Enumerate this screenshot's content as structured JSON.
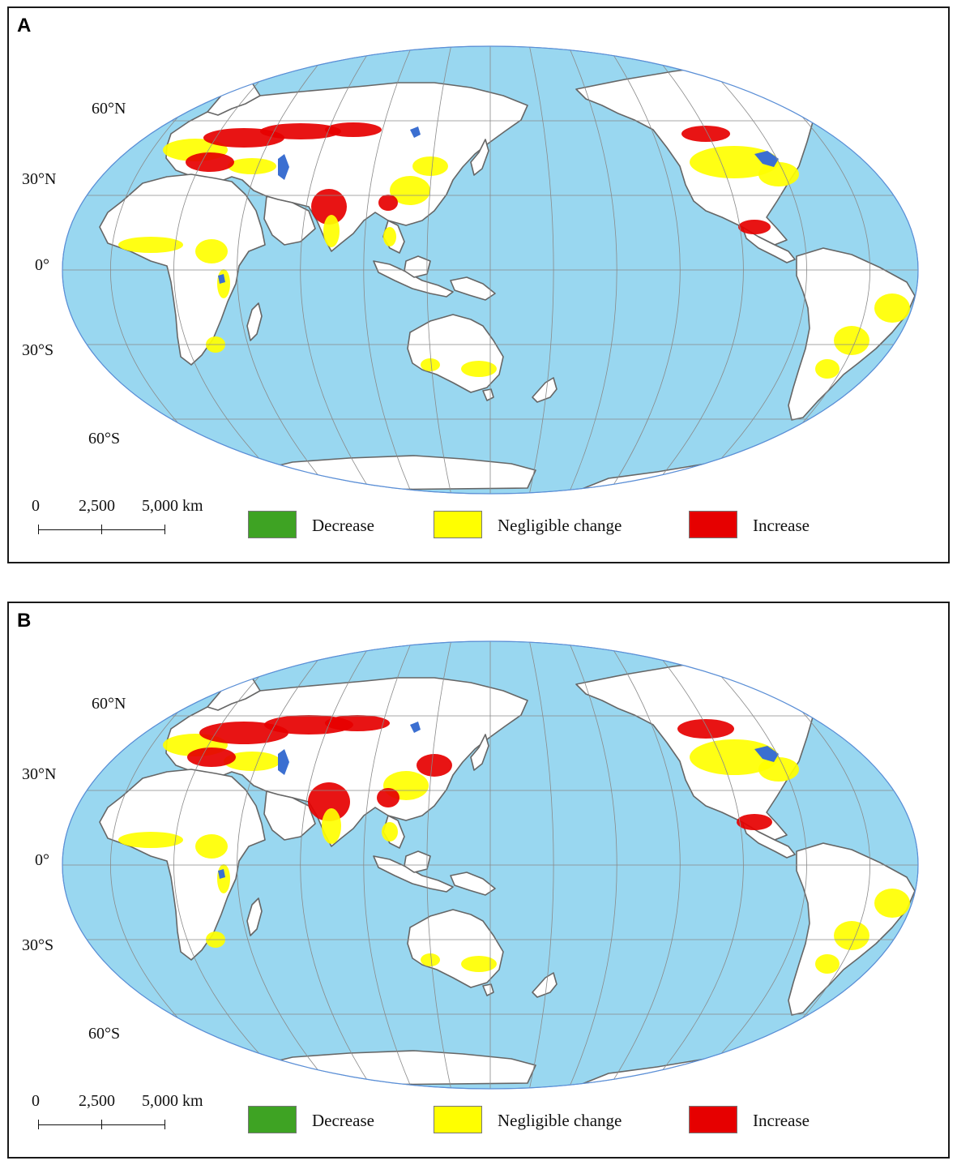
{
  "panels": [
    {
      "letter": "A",
      "latitude_labels": [
        "60°N",
        "30°N",
        "0°",
        "30°S",
        "60°S"
      ],
      "scale": {
        "tick0": "0",
        "tick1": "2,500",
        "tick2": "5,000 km"
      },
      "legend": [
        {
          "label": "Decrease",
          "color": "#3ea323"
        },
        {
          "label": "Negligible change",
          "color": "#ffff00"
        },
        {
          "label": "Increase",
          "color": "#e60000"
        }
      ]
    },
    {
      "letter": "B",
      "latitude_labels": [
        "60°N",
        "30°N",
        "0°",
        "30°S",
        "60°S"
      ],
      "scale": {
        "tick0": "0",
        "tick1": "2,500",
        "tick2": "5,000 km"
      },
      "legend": [
        {
          "label": "Decrease",
          "color": "#3ea323"
        },
        {
          "label": "Negligible change",
          "color": "#ffff00"
        },
        {
          "label": "Increase",
          "color": "#e60000"
        }
      ]
    }
  ],
  "colors": {
    "ocean": "#99d7f0",
    "land": "#ffffff",
    "coast": "#666666",
    "graticule": "#8a8a8a",
    "lakes": "#3b6fd1"
  }
}
